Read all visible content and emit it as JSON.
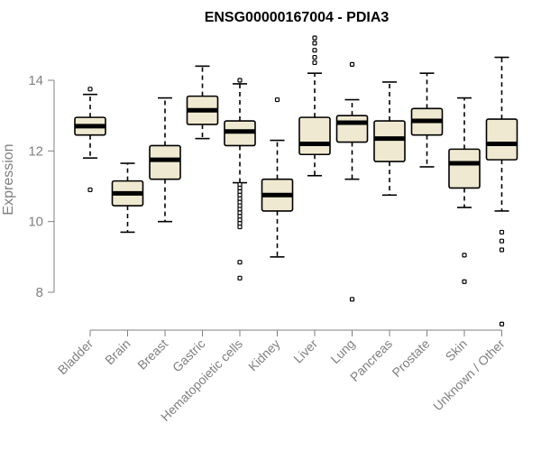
{
  "chart_data": {
    "type": "boxplot",
    "title": "ENSG00000167004 - PDIA3",
    "xlabel": "",
    "ylabel": "Expression",
    "ylim": [
      7.0,
      15.5
    ],
    "yticks": [
      8,
      10,
      12,
      14
    ],
    "box_fill": "#efe9d1",
    "categories": [
      "Bladder",
      "Brain",
      "Breast",
      "Gastric",
      "Hematopoietic cells",
      "Kidney",
      "Liver",
      "Lung",
      "Pancreas",
      "Prostate",
      "Skin",
      "Unknown / Other"
    ],
    "boxes": [
      {
        "whisker_low": 11.8,
        "q1": 12.45,
        "median": 12.7,
        "q3": 12.95,
        "whisker_high": 13.6,
        "outliers": [
          13.75,
          10.9
        ]
      },
      {
        "whisker_low": 9.7,
        "q1": 10.45,
        "median": 10.8,
        "q3": 11.15,
        "whisker_high": 11.65,
        "outliers": []
      },
      {
        "whisker_low": 10.0,
        "q1": 11.2,
        "median": 11.75,
        "q3": 12.15,
        "whisker_high": 13.5,
        "outliers": []
      },
      {
        "whisker_low": 12.35,
        "q1": 12.75,
        "median": 13.15,
        "q3": 13.55,
        "whisker_high": 14.4,
        "outliers": []
      },
      {
        "whisker_low": 11.1,
        "q1": 12.15,
        "median": 12.55,
        "q3": 12.85,
        "whisker_high": 13.9,
        "outliers": [
          14.0,
          11.05,
          10.95,
          10.85,
          10.75,
          10.65,
          10.55,
          10.45,
          10.35,
          10.25,
          10.15,
          10.05,
          9.95,
          9.85,
          8.85,
          8.4
        ]
      },
      {
        "whisker_low": 9.0,
        "q1": 10.3,
        "median": 10.75,
        "q3": 11.2,
        "whisker_high": 12.3,
        "outliers": [
          13.45
        ]
      },
      {
        "whisker_low": 11.3,
        "q1": 11.9,
        "median": 12.2,
        "q3": 12.95,
        "whisker_high": 14.2,
        "outliers": [
          15.2,
          15.05,
          14.85,
          14.65,
          14.5
        ]
      },
      {
        "whisker_low": 11.2,
        "q1": 12.25,
        "median": 12.8,
        "q3": 13.0,
        "whisker_high": 13.45,
        "outliers": [
          14.45,
          7.8
        ]
      },
      {
        "whisker_low": 10.75,
        "q1": 11.7,
        "median": 12.35,
        "q3": 12.85,
        "whisker_high": 13.95,
        "outliers": []
      },
      {
        "whisker_low": 11.55,
        "q1": 12.45,
        "median": 12.85,
        "q3": 13.2,
        "whisker_high": 14.2,
        "outliers": []
      },
      {
        "whisker_low": 10.4,
        "q1": 10.95,
        "median": 11.65,
        "q3": 12.05,
        "whisker_high": 13.5,
        "outliers": [
          9.05,
          8.3
        ]
      },
      {
        "whisker_low": 10.3,
        "q1": 11.75,
        "median": 12.2,
        "q3": 12.9,
        "whisker_high": 14.65,
        "outliers": [
          9.7,
          9.45,
          9.2,
          7.1
        ]
      }
    ]
  }
}
